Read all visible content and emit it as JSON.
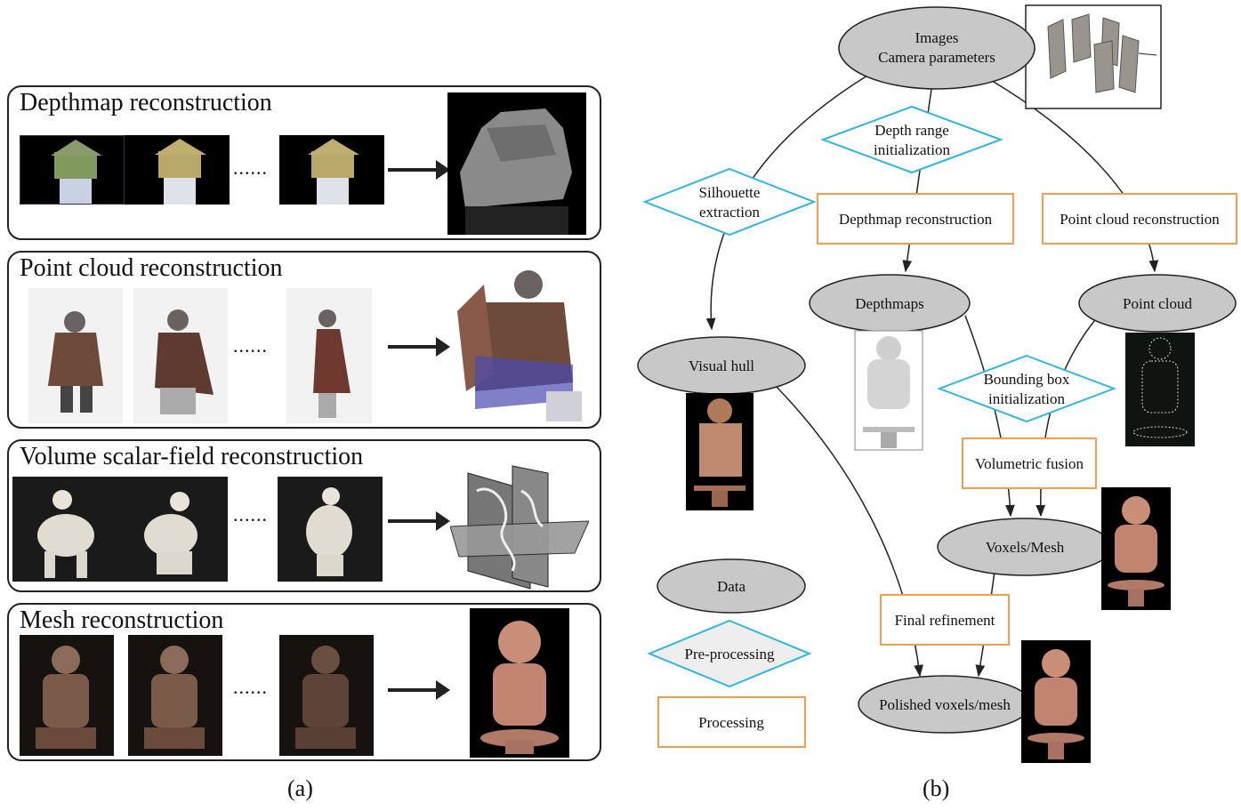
{
  "panel_a": {
    "panels": [
      {
        "title": "Depthmap reconstruction",
        "dots": "......"
      },
      {
        "title": "Point cloud reconstruction",
        "dots": "......"
      },
      {
        "title": "Volume scalar-field reconstruction",
        "dots": "......"
      },
      {
        "title": "Mesh reconstruction",
        "dots": "......"
      }
    ],
    "caption": "(a)"
  },
  "panel_b": {
    "nodes": {
      "images_line1": "Images",
      "images_line2": "Camera parameters",
      "depth_range_line1": "Depth range",
      "depth_range_line2": "initialization",
      "silhouette_line1": "Silhouette",
      "silhouette_line2": "extraction",
      "depthmap_recon": "Depthmap reconstruction",
      "pointcloud_recon": "Point cloud reconstruction",
      "depthmaps": "Depthmaps",
      "point_cloud": "Point cloud",
      "visual_hull": "Visual hull",
      "bbox_line1": "Bounding box",
      "bbox_line2": "initialization",
      "volumetric_fusion": "Volumetric fusion",
      "voxels_mesh": "Voxels/Mesh",
      "final_refinement": "Final refinement",
      "polished": "Polished voxels/mesh"
    },
    "legend": {
      "data": "Data",
      "preprocessing": "Pre-processing",
      "processing": "Processing"
    },
    "caption": "(b)"
  },
  "colors": {
    "data_fill": "#c8c8c8",
    "preprocess_stroke": "#33b5d8",
    "process_stroke": "#f0a050",
    "bronze": "#b07a5a"
  }
}
